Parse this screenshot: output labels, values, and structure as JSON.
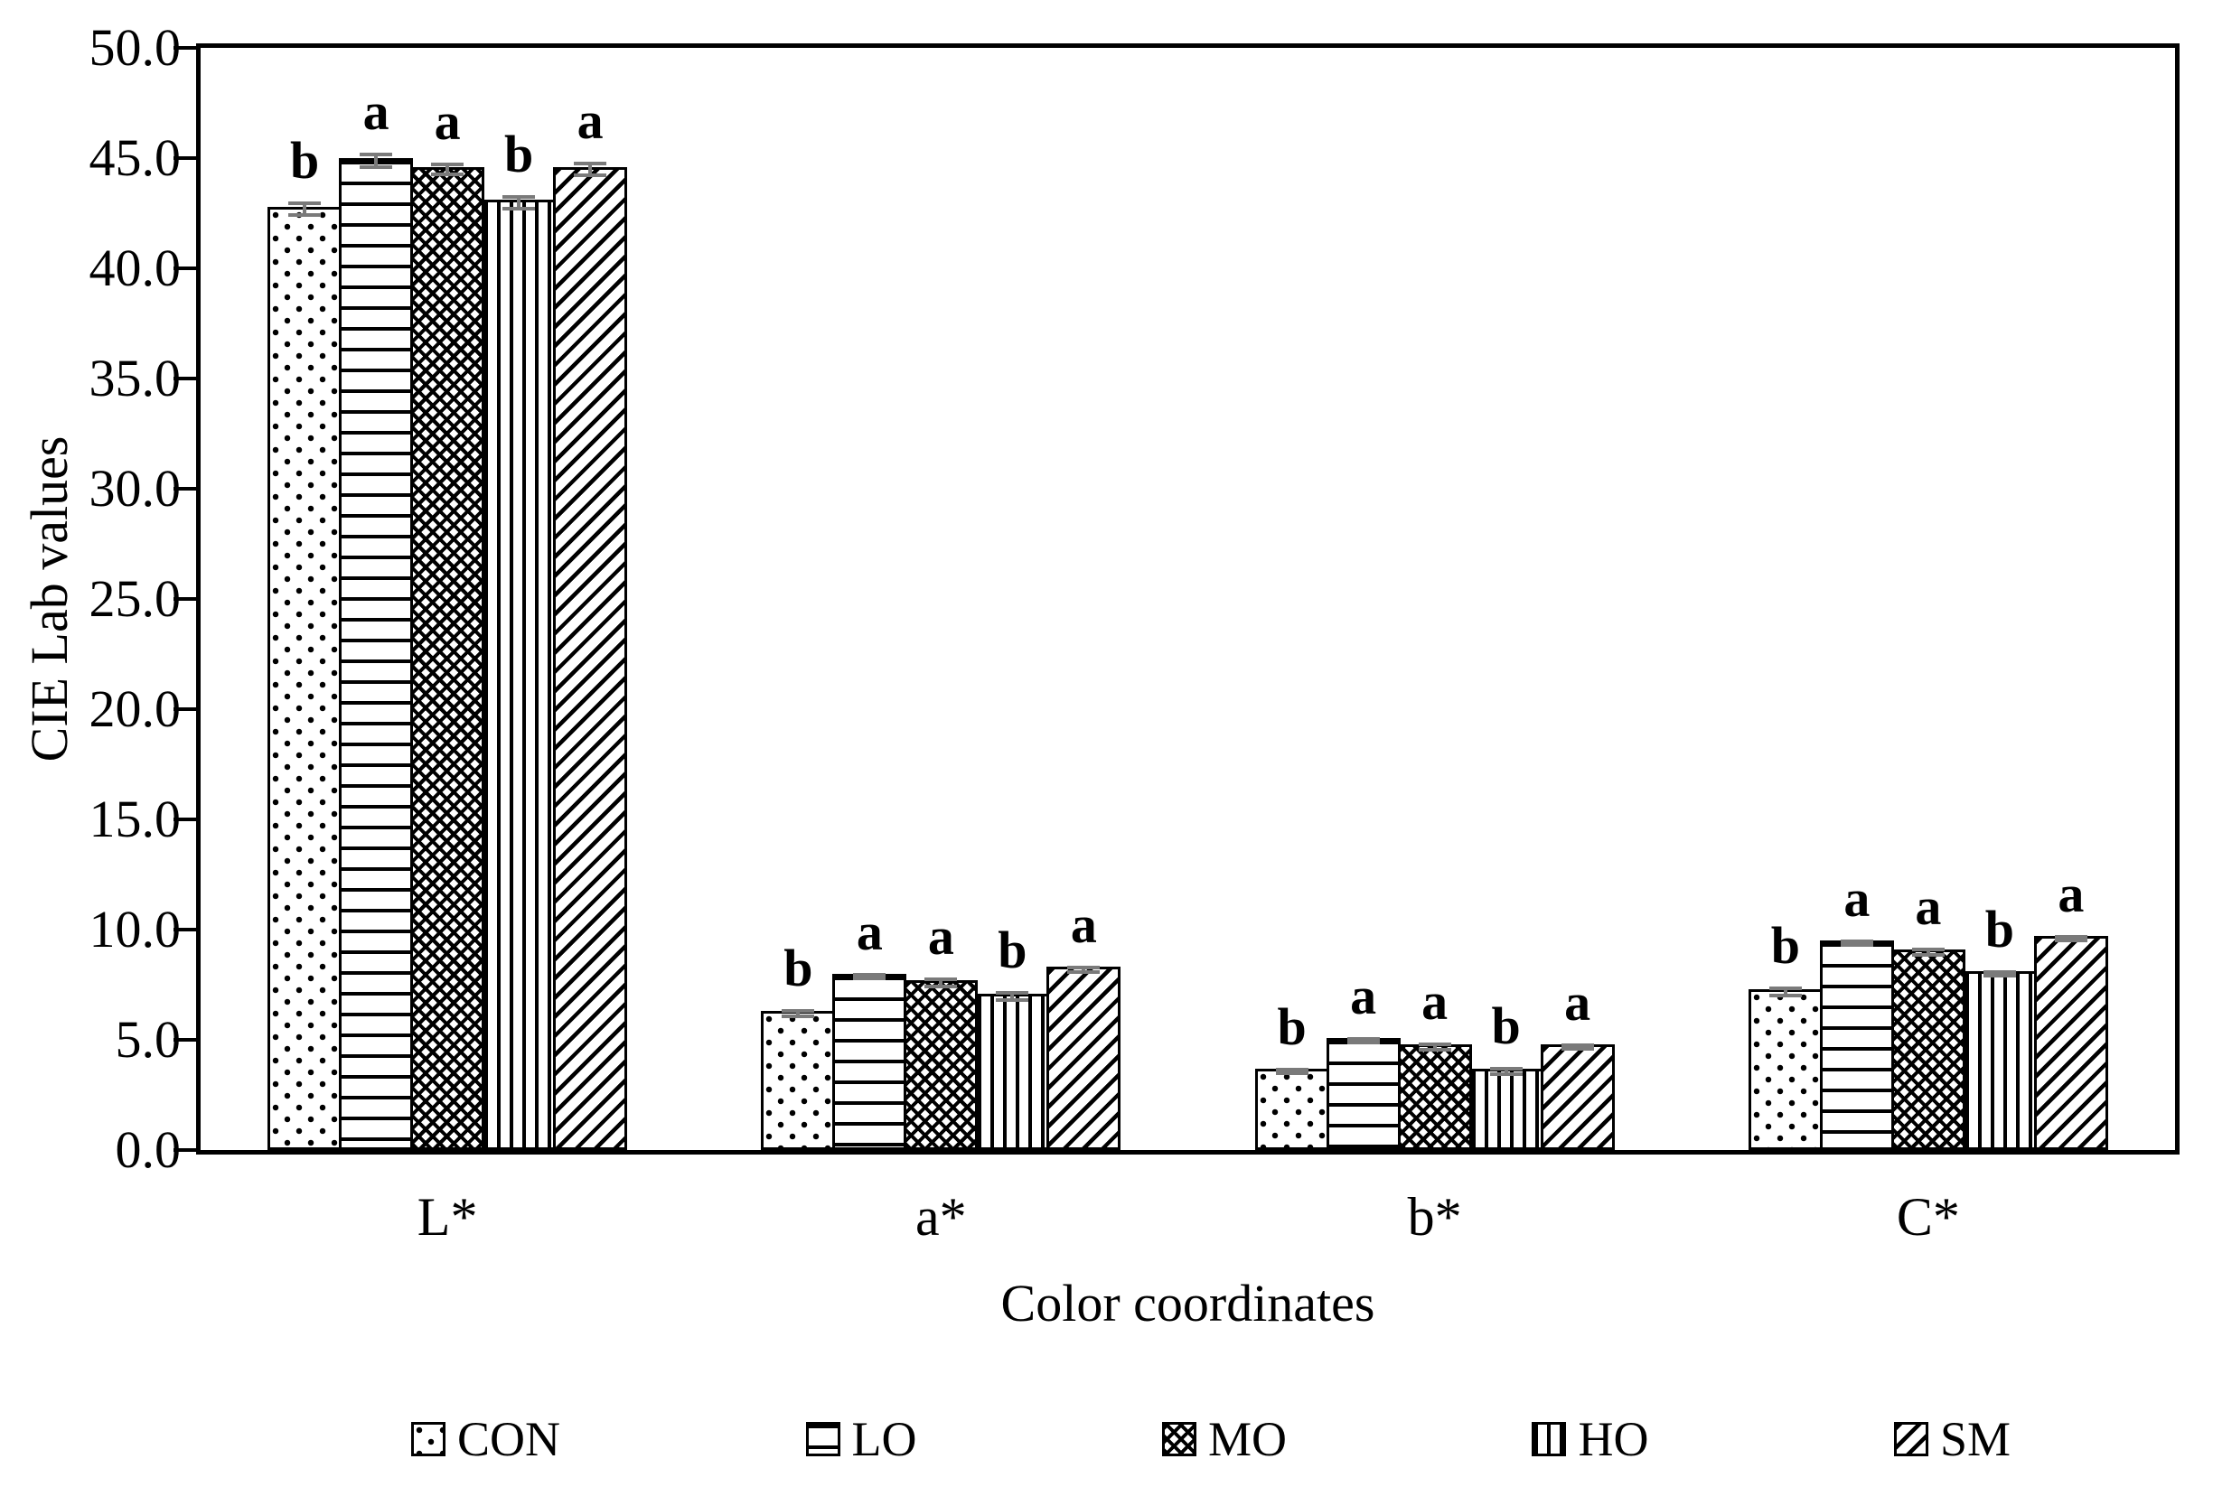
{
  "chart_data": {
    "type": "bar",
    "title": "",
    "xlabel": "Color coordinates",
    "ylabel": "CIE Lab values",
    "ylim": [
      0.0,
      50.0
    ],
    "ytick_step": 5.0,
    "ytick_labels": [
      "50.0",
      "45.0",
      "40.0",
      "35.0",
      "30.0",
      "25.0",
      "20.0",
      "15.0",
      "10.0",
      "5.0",
      "0.0"
    ],
    "grid": false,
    "legend_position": "bottom",
    "error_bar_color": "#7a7a7a",
    "categories": [
      "L*",
      "a*",
      "b*",
      "C*"
    ],
    "series": [
      {
        "name": "CON",
        "pattern": "dots",
        "values": [
          42.8,
          6.3,
          3.7,
          7.3
        ],
        "errors": [
          0.35,
          0.2,
          0.15,
          0.25
        ],
        "letters": [
          "b",
          "b",
          "b",
          "b"
        ]
      },
      {
        "name": "LO",
        "pattern": "hlines",
        "values": [
          45.0,
          8.0,
          5.1,
          9.5
        ],
        "errors": [
          0.35,
          0.15,
          0.15,
          0.15
        ],
        "letters": [
          "a",
          "a",
          "a",
          "a"
        ]
      },
      {
        "name": "MO",
        "pattern": "crosshatch",
        "values": [
          44.6,
          7.7,
          4.8,
          9.1
        ],
        "errors": [
          0.3,
          0.25,
          0.2,
          0.2
        ],
        "letters": [
          "a",
          "a",
          "a",
          "a"
        ]
      },
      {
        "name": "HO",
        "pattern": "vlines",
        "values": [
          43.1,
          7.1,
          3.7,
          8.1
        ],
        "errors": [
          0.35,
          0.25,
          0.2,
          0.15
        ],
        "letters": [
          "b",
          "b",
          "b",
          "b"
        ]
      },
      {
        "name": "SM",
        "pattern": "diagonal",
        "values": [
          44.6,
          8.3,
          4.8,
          9.7
        ],
        "errors": [
          0.35,
          0.2,
          0.12,
          0.15
        ],
        "letters": [
          "a",
          "a",
          "a",
          "a"
        ]
      }
    ]
  }
}
